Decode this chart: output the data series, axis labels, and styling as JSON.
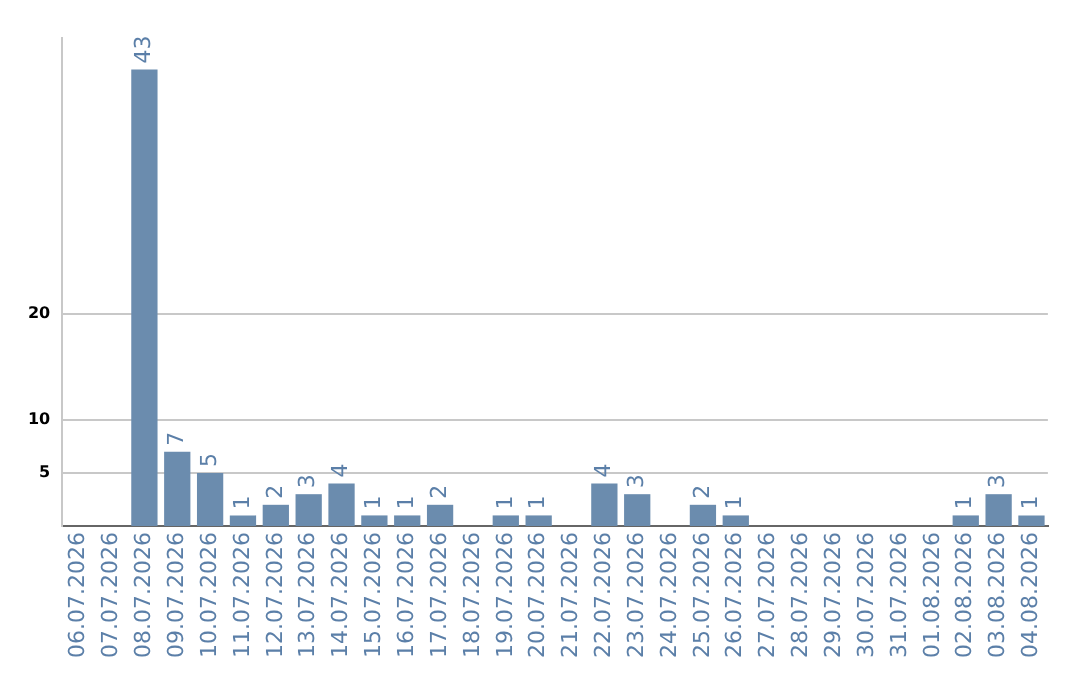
{
  "chart_data": {
    "type": "bar",
    "categories": [
      "06.07.2026",
      "07.07.2026",
      "08.07.2026",
      "09.07.2026",
      "10.07.2026",
      "11.07.2026",
      "12.07.2026",
      "13.07.2026",
      "14.07.2026",
      "15.07.2026",
      "16.07.2026",
      "17.07.2026",
      "18.07.2026",
      "19.07.2026",
      "20.07.2026",
      "21.07.2026",
      "22.07.2026",
      "23.07.2026",
      "24.07.2026",
      "25.07.2026",
      "26.07.2026",
      "27.07.2026",
      "28.07.2026",
      "29.07.2026",
      "30.07.2026",
      "31.07.2026",
      "01.08.2026",
      "02.08.2026",
      "03.08.2026",
      "04.08.2026"
    ],
    "values": [
      0,
      0,
      43,
      7,
      5,
      1,
      2,
      3,
      4,
      1,
      1,
      2,
      0,
      1,
      1,
      0,
      4,
      3,
      0,
      2,
      1,
      0,
      0,
      0,
      0,
      0,
      0,
      1,
      3,
      1
    ],
    "value_labels": [
      null,
      null,
      "43",
      "7",
      "5",
      "1",
      "2",
      "3",
      "4",
      "1",
      "1",
      "2",
      null,
      "1",
      "1",
      null,
      "4",
      "3",
      null,
      "2",
      "1",
      null,
      null,
      null,
      null,
      null,
      null,
      "1",
      "3",
      "1"
    ],
    "color": "#6b8cae",
    "ylim": [
      0,
      46
    ],
    "yticks": [
      5,
      10,
      20
    ],
    "grid": "y"
  }
}
